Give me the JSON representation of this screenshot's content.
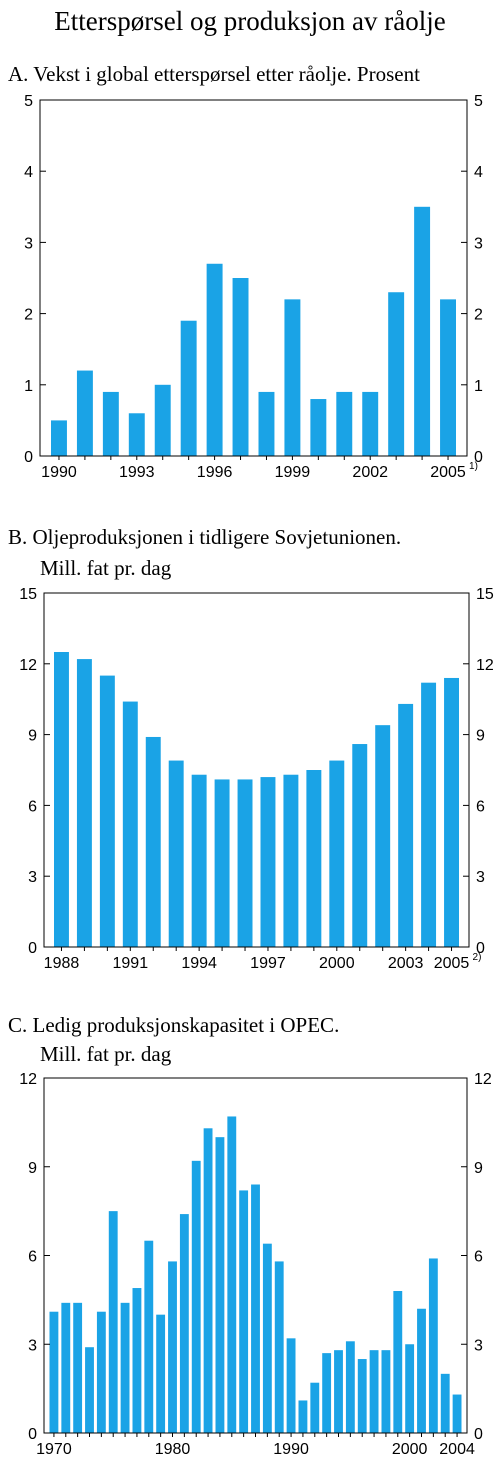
{
  "title": "Etterspørsel og produksjon av råolje",
  "chart_data": [
    {
      "type": "bar",
      "title": "A. Vekst i global etterspørsel etter råolje. Prosent",
      "subtitle": "",
      "x": [
        1990,
        1991,
        1992,
        1993,
        1994,
        1995,
        1996,
        1997,
        1998,
        1999,
        2000,
        2001,
        2002,
        2003,
        2004,
        2005
      ],
      "values": [
        0.5,
        1.2,
        0.9,
        0.6,
        1.0,
        1.9,
        2.7,
        2.5,
        0.9,
        2.2,
        0.8,
        0.9,
        0.9,
        2.3,
        3.5,
        2.2
      ],
      "ylim": [
        0,
        5
      ],
      "yticks": [
        "0",
        "1",
        "2",
        "3",
        "4",
        "5"
      ],
      "xticks": [
        {
          "x": 1990,
          "label": "1990"
        },
        {
          "x": 1993,
          "label": "1993"
        },
        {
          "x": 1996,
          "label": "1996"
        },
        {
          "x": 1999,
          "label": "1999"
        },
        {
          "x": 2002,
          "label": "2002"
        },
        {
          "x": 2005,
          "label": "2005"
        }
      ],
      "footnote": "1)",
      "grid": false,
      "color": "#1aa3e6"
    },
    {
      "type": "bar",
      "title": "B. Oljeproduksjonen i tidligere Sovjetunionen.",
      "subtitle": "Mill. fat pr. dag",
      "x": [
        1988,
        1989,
        1990,
        1991,
        1992,
        1993,
        1994,
        1995,
        1996,
        1997,
        1998,
        1999,
        2000,
        2001,
        2002,
        2003,
        2004,
        2005
      ],
      "values": [
        12.5,
        12.2,
        11.5,
        10.4,
        8.9,
        7.9,
        7.3,
        7.1,
        7.1,
        7.2,
        7.3,
        7.5,
        7.9,
        8.6,
        9.4,
        10.3,
        11.2,
        11.4
      ],
      "ylim": [
        0,
        15
      ],
      "yticks": [
        "0",
        "3",
        "6",
        "9",
        "12",
        "15"
      ],
      "xticks": [
        {
          "x": 1988,
          "label": "1988"
        },
        {
          "x": 1991,
          "label": "1991"
        },
        {
          "x": 1994,
          "label": "1994"
        },
        {
          "x": 1997,
          "label": "1997"
        },
        {
          "x": 2000,
          "label": "2000"
        },
        {
          "x": 2003,
          "label": "2003"
        },
        {
          "x": 2005,
          "label": "2005"
        }
      ],
      "footnote": "2)",
      "grid": false,
      "color": "#1aa3e6"
    },
    {
      "type": "bar",
      "title": "C.  Ledig produksjonskapasitet i OPEC.",
      "subtitle": "Mill. fat pr. dag",
      "x": [
        1970,
        1971,
        1972,
        1973,
        1974,
        1975,
        1976,
        1977,
        1978,
        1979,
        1980,
        1981,
        1982,
        1983,
        1984,
        1985,
        1986,
        1987,
        1988,
        1989,
        1990,
        1991,
        1992,
        1993,
        1994,
        1995,
        1996,
        1997,
        1998,
        1999,
        2000,
        2001,
        2002,
        2003,
        2004
      ],
      "values": [
        4.1,
        4.4,
        4.4,
        2.9,
        4.1,
        7.5,
        4.4,
        4.9,
        6.5,
        4.0,
        5.8,
        7.4,
        9.2,
        10.3,
        10.0,
        10.7,
        8.2,
        8.4,
        6.4,
        5.8,
        3.2,
        1.1,
        1.7,
        2.7,
        2.8,
        3.1,
        2.5,
        2.8,
        2.8,
        4.8,
        3.0,
        4.2,
        5.9,
        2.0,
        1.3
      ],
      "ylim": [
        0,
        12
      ],
      "yticks": [
        "0",
        "3",
        "6",
        "9",
        "12"
      ],
      "xticks": [
        {
          "x": 1970,
          "label": "1970"
        },
        {
          "x": 1980,
          "label": "1980"
        },
        {
          "x": 1990,
          "label": "1990"
        },
        {
          "x": 2000,
          "label": "2000"
        },
        {
          "x": 2004,
          "label": "2004"
        }
      ],
      "footnote": "",
      "grid": false,
      "color": "#1aa3e6"
    }
  ]
}
